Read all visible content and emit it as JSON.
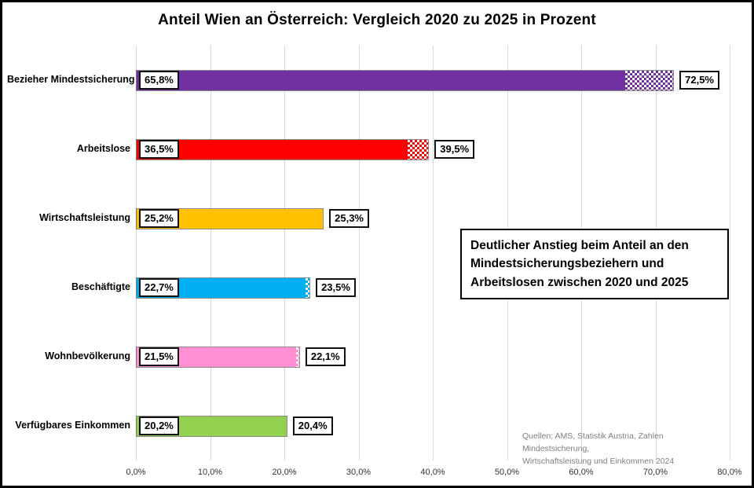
{
  "title": "Anteil Wien an Österreich: Vergleich 2020 zu 2025 in Prozent",
  "chart_data": {
    "type": "bar",
    "orientation": "horizontal",
    "title": "Anteil Wien an Österreich: Vergleich 2020 zu 2025 in Prozent",
    "xlabel": "",
    "ylabel": "",
    "xlim": [
      0,
      80
    ],
    "grid": "vertical",
    "x_ticks": [
      "0,0%",
      "10,0%",
      "20,0%",
      "30,0%",
      "40,0%",
      "50,0%",
      "60,0%",
      "70,0%",
      "80,0%"
    ],
    "categories": [
      "Bezieher Mindestsicherung",
      "Arbeitslose",
      "Wirtschaftsleistung",
      "Beschäftigte",
      "Wohnbevölkerung",
      "Verfügbares Einkommen"
    ],
    "series": [
      {
        "name": "2020",
        "values": [
          65.8,
          36.5,
          25.2,
          22.7,
          21.5,
          20.2
        ],
        "labels": [
          "65,8%",
          "36,5%",
          "25,2%",
          "22,7%",
          "21,5%",
          "20,2%"
        ]
      },
      {
        "name": "2025",
        "values": [
          72.5,
          39.5,
          25.3,
          23.5,
          22.1,
          20.4
        ],
        "labels": [
          "72,5%",
          "39,5%",
          "25,3%",
          "23,5%",
          "22,1%",
          "20,4%"
        ]
      }
    ],
    "bar_colors": [
      "#7030A0",
      "#FF0000",
      "#FFC000",
      "#00B0F0",
      "#FF8FD2",
      "#92D050"
    ],
    "hatch_style": "checkered (2025 increase shown as dotted extension of bar)"
  },
  "annotation": {
    "text": "Deutlicher Anstieg beim Anteil an den Mindestsicherungsbeziehern und Arbeitslosen zwischen 2020 und 2025"
  },
  "sources": {
    "line1": "Quellen: AMS, Statistik Austria, Zahlen Mindestsicherung,",
    "line2": "Wirtschaftsleistung und Einkommen 2024"
  }
}
